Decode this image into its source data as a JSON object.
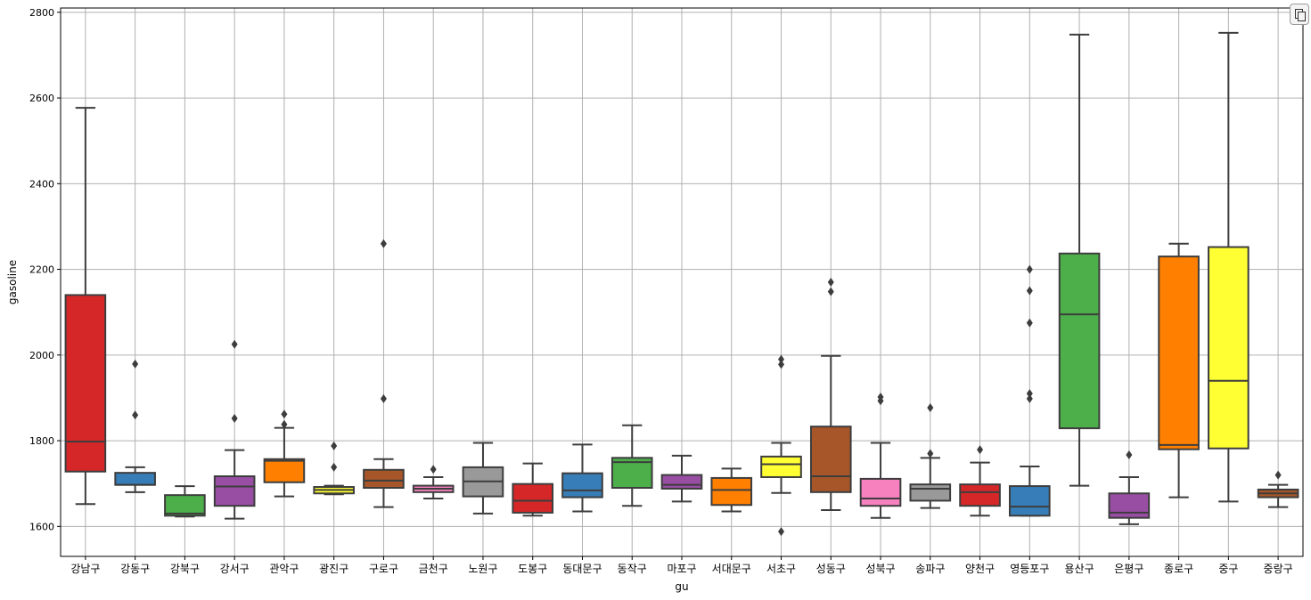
{
  "chart_data": {
    "type": "box",
    "xlabel": "gu",
    "ylabel": "gasoline",
    "ylim": [
      1530,
      2810
    ],
    "yticks": [
      1600,
      1800,
      2000,
      2200,
      2400,
      2600,
      2800
    ],
    "grid": true,
    "palette": [
      "#d62728",
      "#377eb8",
      "#4daf4a",
      "#984ea3",
      "#ff7f00",
      "#ffff33",
      "#a65628",
      "#f781bf",
      "#999999"
    ],
    "boxes": [
      {
        "category": "강남구",
        "whislo": 1652,
        "q1": 1728,
        "med": 1798,
        "q3": 2140,
        "whishi": 2577,
        "fliers": []
      },
      {
        "category": "강동구",
        "whislo": 1680,
        "q1": 1697,
        "med": 1697,
        "q3": 1725,
        "whishi": 1738,
        "fliers": [
          1979,
          1860
        ]
      },
      {
        "category": "강북구",
        "whislo": 1623,
        "q1": 1625,
        "med": 1630,
        "q3": 1673,
        "whishi": 1694,
        "fliers": []
      },
      {
        "category": "강서구",
        "whislo": 1618,
        "q1": 1648,
        "med": 1693,
        "q3": 1717,
        "whishi": 1778,
        "fliers": [
          2025,
          1852
        ]
      },
      {
        "category": "관악구",
        "whislo": 1670,
        "q1": 1703,
        "med": 1753,
        "q3": 1757,
        "whishi": 1830,
        "fliers": [
          1862,
          1838
        ]
      },
      {
        "category": "광진구",
        "whislo": 1675,
        "q1": 1677,
        "med": 1685,
        "q3": 1692,
        "whishi": 1695,
        "fliers": [
          1788,
          1738
        ]
      },
      {
        "category": "구로구",
        "whislo": 1645,
        "q1": 1690,
        "med": 1707,
        "q3": 1732,
        "whishi": 1757,
        "fliers": [
          2260,
          1898
        ]
      },
      {
        "category": "금천구",
        "whislo": 1665,
        "q1": 1680,
        "med": 1688,
        "q3": 1695,
        "whishi": 1715,
        "fliers": [
          1733
        ]
      },
      {
        "category": "노원구",
        "whislo": 1630,
        "q1": 1670,
        "med": 1705,
        "q3": 1738,
        "whishi": 1795,
        "fliers": []
      },
      {
        "category": "도봉구",
        "whislo": 1625,
        "q1": 1632,
        "med": 1660,
        "q3": 1699,
        "whishi": 1747,
        "fliers": []
      },
      {
        "category": "동대문구",
        "whislo": 1635,
        "q1": 1668,
        "med": 1684,
        "q3": 1724,
        "whishi": 1791,
        "fliers": []
      },
      {
        "category": "동작구",
        "whislo": 1648,
        "q1": 1690,
        "med": 1750,
        "q3": 1760,
        "whishi": 1836,
        "fliers": []
      },
      {
        "category": "마포구",
        "whislo": 1658,
        "q1": 1688,
        "med": 1697,
        "q3": 1720,
        "whishi": 1765,
        "fliers": []
      },
      {
        "category": "서대문구",
        "whislo": 1635,
        "q1": 1650,
        "med": 1685,
        "q3": 1713,
        "whishi": 1735,
        "fliers": []
      },
      {
        "category": "서초구",
        "whislo": 1678,
        "q1": 1715,
        "med": 1745,
        "q3": 1763,
        "whishi": 1795,
        "fliers": [
          1990,
          1978,
          1588
        ]
      },
      {
        "category": "성동구",
        "whislo": 1638,
        "q1": 1680,
        "med": 1717,
        "q3": 1833,
        "whishi": 1998,
        "fliers": [
          2170,
          2148
        ]
      },
      {
        "category": "성북구",
        "whislo": 1620,
        "q1": 1648,
        "med": 1665,
        "q3": 1711,
        "whishi": 1795,
        "fliers": [
          1902,
          1893
        ]
      },
      {
        "category": "송파구",
        "whislo": 1643,
        "q1": 1660,
        "med": 1688,
        "q3": 1698,
        "whishi": 1760,
        "fliers": [
          1877,
          1770
        ]
      },
      {
        "category": "양천구",
        "whislo": 1625,
        "q1": 1648,
        "med": 1680,
        "q3": 1698,
        "whishi": 1749,
        "fliers": [
          1779
        ]
      },
      {
        "category": "영등포구",
        "whislo": 1625,
        "q1": 1625,
        "med": 1646,
        "q3": 1694,
        "whishi": 1740,
        "fliers": [
          2200,
          2150,
          2075,
          1910,
          1898
        ]
      },
      {
        "category": "용산구",
        "whislo": 1695,
        "q1": 1829,
        "med": 2095,
        "q3": 2237,
        "whishi": 2748,
        "fliers": []
      },
      {
        "category": "은평구",
        "whislo": 1605,
        "q1": 1620,
        "med": 1632,
        "q3": 1677,
        "whishi": 1715,
        "fliers": [
          1767
        ]
      },
      {
        "category": "종로구",
        "whislo": 1668,
        "q1": 1780,
        "med": 1790,
        "q3": 2230,
        "whishi": 2260,
        "fliers": []
      },
      {
        "category": "중구",
        "whislo": 1658,
        "q1": 1782,
        "med": 1940,
        "q3": 2252,
        "whishi": 2752,
        "fliers": []
      },
      {
        "category": "중랑구",
        "whislo": 1645,
        "q1": 1668,
        "med": 1677,
        "q3": 1686,
        "whishi": 1697,
        "fliers": [
          1720
        ]
      }
    ]
  }
}
